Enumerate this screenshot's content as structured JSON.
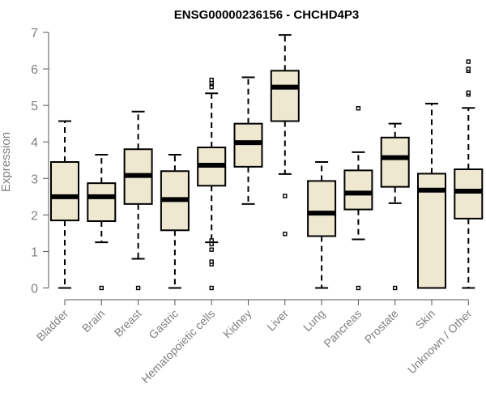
{
  "chart_data": {
    "type": "boxplot",
    "title": "ENSG00000236156 - CHCHD4P3",
    "ylabel": "Expression",
    "ylim": [
      0,
      7
    ],
    "yticks": [
      "0",
      "1",
      "2",
      "3",
      "4",
      "5",
      "6",
      "7"
    ],
    "grid": false,
    "box_color": "#efe8d0",
    "categories": [
      "Bladder",
      "Brain",
      "Breast",
      "Gastric",
      "Hematopoietic cells",
      "Kidney",
      "Liver",
      "Lung",
      "Pancreas",
      "Prostate",
      "Skin",
      "Unknown / Other"
    ],
    "boxes": [
      {
        "min": 0.0,
        "q1": 1.85,
        "median": 2.5,
        "q3": 3.45,
        "max": 4.57,
        "outliers": []
      },
      {
        "min": 1.25,
        "q1": 1.83,
        "median": 2.5,
        "q3": 2.87,
        "max": 3.65,
        "outliers": [
          0.0
        ]
      },
      {
        "min": 0.8,
        "q1": 2.3,
        "median": 3.08,
        "q3": 3.8,
        "max": 4.83,
        "outliers": [
          0.0
        ]
      },
      {
        "min": 0.0,
        "q1": 1.58,
        "median": 2.42,
        "q3": 3.2,
        "max": 3.65,
        "outliers": []
      },
      {
        "min": 1.25,
        "q1": 2.8,
        "median": 3.36,
        "q3": 3.85,
        "max": 5.33,
        "outliers": [
          0.0,
          0.65,
          0.72,
          1.05,
          1.2,
          1.3,
          5.5,
          5.62,
          5.7
        ]
      },
      {
        "min": 2.3,
        "q1": 3.32,
        "median": 3.98,
        "q3": 4.5,
        "max": 5.77,
        "outliers": []
      },
      {
        "min": 3.12,
        "q1": 4.57,
        "median": 5.5,
        "q3": 5.95,
        "max": 6.93,
        "outliers": [
          1.48,
          2.52
        ]
      },
      {
        "min": 0.0,
        "q1": 1.42,
        "median": 2.05,
        "q3": 2.93,
        "max": 3.45,
        "outliers": []
      },
      {
        "min": 1.33,
        "q1": 2.15,
        "median": 2.6,
        "q3": 3.22,
        "max": 3.72,
        "outliers": [
          0.0,
          4.92
        ]
      },
      {
        "min": 2.32,
        "q1": 2.77,
        "median": 3.57,
        "q3": 4.12,
        "max": 4.5,
        "outliers": [
          0.0
        ]
      },
      {
        "min": 0.0,
        "q1": 0.0,
        "median": 2.68,
        "q3": 3.13,
        "max": 5.05,
        "outliers": []
      },
      {
        "min": 0.0,
        "q1": 1.9,
        "median": 2.65,
        "q3": 3.25,
        "max": 4.93,
        "outliers": [
          5.3,
          5.35,
          5.95,
          6.0,
          6.2
        ]
      }
    ]
  }
}
